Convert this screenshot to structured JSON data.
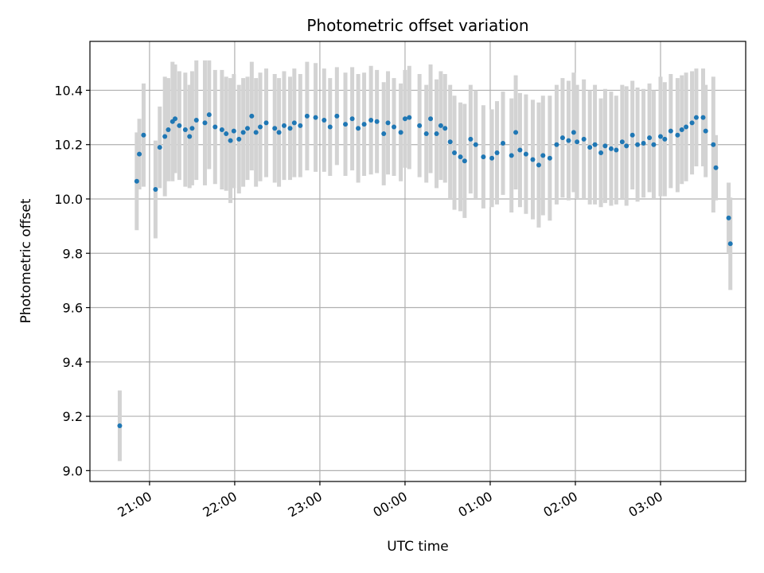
{
  "chart_data": {
    "type": "scatter",
    "title": "Photometric offset variation",
    "xlabel": "UTC time",
    "ylabel": "Photometric offset",
    "x_unit": "hours (UTC, continuing past midnight)",
    "xlim": [
      20.3,
      28.0
    ],
    "ylim": [
      8.96,
      10.58
    ],
    "x_ticks": [
      {
        "value": 21,
        "label": "21:00"
      },
      {
        "value": 22,
        "label": "22:00"
      },
      {
        "value": 23,
        "label": "23:00"
      },
      {
        "value": 24,
        "label": "00:00"
      },
      {
        "value": 25,
        "label": "01:00"
      },
      {
        "value": 26,
        "label": "02:00"
      },
      {
        "value": 27,
        "label": "03:00"
      }
    ],
    "y_ticks": [
      {
        "value": 9.0,
        "label": "9.0"
      },
      {
        "value": 9.2,
        "label": "9.2"
      },
      {
        "value": 9.4,
        "label": "9.4"
      },
      {
        "value": 9.6,
        "label": "9.6"
      },
      {
        "value": 9.8,
        "label": "9.8"
      },
      {
        "value": 10.0,
        "label": "10.0"
      },
      {
        "value": 10.2,
        "label": "10.2"
      },
      {
        "value": 10.4,
        "label": "10.4"
      }
    ],
    "grid": true,
    "colors": {
      "marker": "#1f77b4",
      "errorbar": "#d3d3d3",
      "grid": "#b0b0b0"
    },
    "series": [
      {
        "x": [
          20.65,
          20.85,
          20.88,
          20.93,
          21.07,
          21.12,
          21.18,
          21.22,
          21.27,
          21.3,
          21.35,
          21.42,
          21.47,
          21.5,
          21.55,
          21.65,
          21.7,
          21.77,
          21.85,
          21.9,
          21.95,
          21.99,
          22.05,
          22.1,
          22.15,
          22.2,
          22.25,
          22.3,
          22.37,
          22.47,
          22.52,
          22.58,
          22.65,
          22.7,
          22.77,
          22.85,
          22.95,
          23.05,
          23.12,
          23.2,
          23.3,
          23.38,
          23.45,
          23.52,
          23.6,
          23.67,
          23.75,
          23.8,
          23.87,
          23.95,
          24.0,
          24.05,
          24.17,
          24.25,
          24.3,
          24.37,
          24.42,
          24.47,
          24.53,
          24.58,
          24.65,
          24.7,
          24.77,
          24.83,
          24.92,
          25.02,
          25.08,
          25.15,
          25.25,
          25.3,
          25.35,
          25.42,
          25.5,
          25.57,
          25.62,
          25.7,
          25.78,
          25.85,
          25.92,
          25.98,
          26.02,
          26.1,
          26.17,
          26.23,
          26.3,
          26.35,
          26.42,
          26.48,
          26.55,
          26.6,
          26.67,
          26.73,
          26.8,
          26.87,
          26.92,
          27.0,
          27.05,
          27.12,
          27.2,
          27.25,
          27.3,
          27.37,
          27.42,
          27.5,
          27.53,
          27.62,
          27.65
        ],
        "y": [
          9.165,
          10.065,
          10.165,
          10.235,
          10.035,
          10.19,
          10.23,
          10.255,
          10.285,
          10.295,
          10.27,
          10.255,
          10.23,
          10.26,
          10.29,
          10.28,
          10.31,
          10.265,
          10.255,
          10.24,
          10.215,
          10.25,
          10.22,
          10.245,
          10.26,
          10.305,
          10.245,
          10.265,
          10.28,
          10.26,
          10.245,
          10.27,
          10.26,
          10.28,
          10.27,
          10.305,
          10.3,
          10.29,
          10.265,
          10.305,
          10.275,
          10.295,
          10.26,
          10.275,
          10.29,
          10.285,
          10.24,
          10.28,
          10.265,
          10.245,
          10.295,
          10.3,
          10.27,
          10.24,
          10.295,
          10.24,
          10.27,
          10.26,
          10.21,
          10.17,
          10.155,
          10.14,
          10.22,
          10.2,
          10.155,
          10.15,
          10.17,
          10.205,
          10.16,
          10.245,
          10.18,
          10.165,
          10.145,
          10.125,
          10.16,
          10.15,
          10.2,
          10.225,
          10.215,
          10.245,
          10.21,
          10.22,
          10.19,
          10.2,
          10.17,
          10.195,
          10.185,
          10.18,
          10.21,
          10.195,
          10.235,
          10.2,
          10.205,
          10.225,
          10.2,
          10.23,
          10.22,
          10.25,
          10.235,
          10.255,
          10.265,
          10.28,
          10.3,
          10.3,
          10.25,
          10.2,
          10.115
        ],
        "err": [
          0.13,
          0.18,
          0.13,
          0.19,
          0.18,
          0.15,
          0.22,
          0.19,
          0.22,
          0.2,
          0.2,
          0.21,
          0.19,
          0.21,
          0.22,
          0.23,
          0.2,
          0.21,
          0.22,
          0.21,
          0.23,
          0.21,
          0.2,
          0.2,
          0.19,
          0.2,
          0.2,
          0.2,
          0.2,
          0.2,
          0.2,
          0.2,
          0.19,
          0.2,
          0.19,
          0.2,
          0.2,
          0.19,
          0.18,
          0.18,
          0.19,
          0.19,
          0.2,
          0.19,
          0.2,
          0.19,
          0.19,
          0.19,
          0.18,
          0.18,
          0.18,
          0.19,
          0.19,
          0.18,
          0.2,
          0.2,
          0.2,
          0.2,
          0.21,
          0.21,
          0.2,
          0.21,
          0.2,
          0.2,
          0.19,
          0.18,
          0.19,
          0.19,
          0.21,
          0.21,
          0.21,
          0.22,
          0.22,
          0.23,
          0.22,
          0.23,
          0.22,
          0.22,
          0.22,
          0.22,
          0.21,
          0.22,
          0.21,
          0.22,
          0.2,
          0.21,
          0.21,
          0.2,
          0.21,
          0.22,
          0.2,
          0.21,
          0.2,
          0.2,
          0.2,
          0.22,
          0.21,
          0.21,
          0.21,
          0.2,
          0.2,
          0.19,
          0.18,
          0.18,
          0.17,
          0.25,
          0.12
        ]
      },
      {
        "x": [
          27.8,
          27.82
        ],
        "y": [
          9.93,
          9.835
        ],
        "err": [
          0.13,
          0.17
        ]
      }
    ]
  }
}
